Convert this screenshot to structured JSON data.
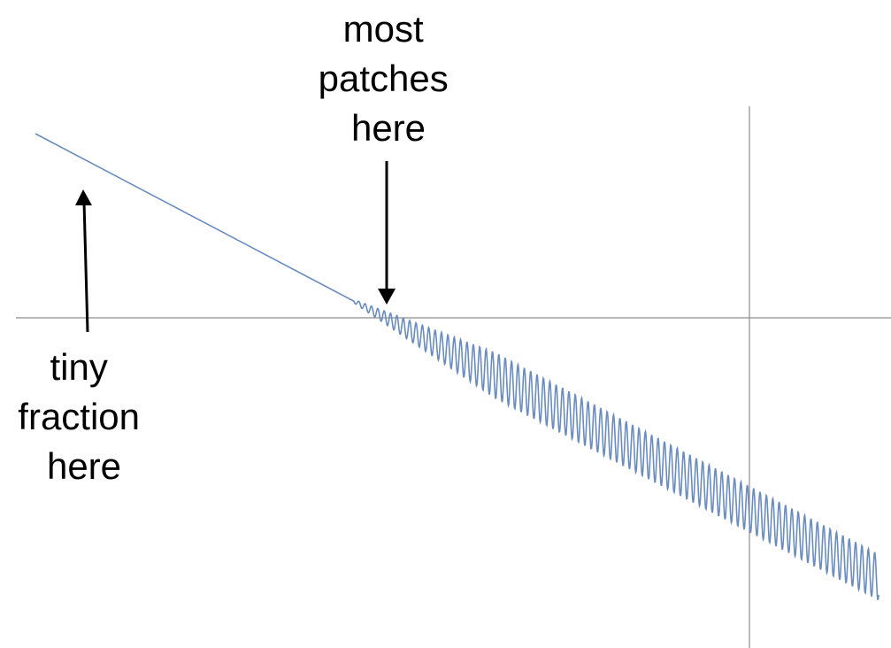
{
  "annotations": {
    "top_label": [
      "most",
      "patches",
      "here"
    ],
    "bottom_label": [
      "tiny",
      "fraction",
      "here"
    ]
  },
  "colors": {
    "curve": "#6a8cbe",
    "axis": "#8c8c8c",
    "arrow": "#000000"
  }
}
